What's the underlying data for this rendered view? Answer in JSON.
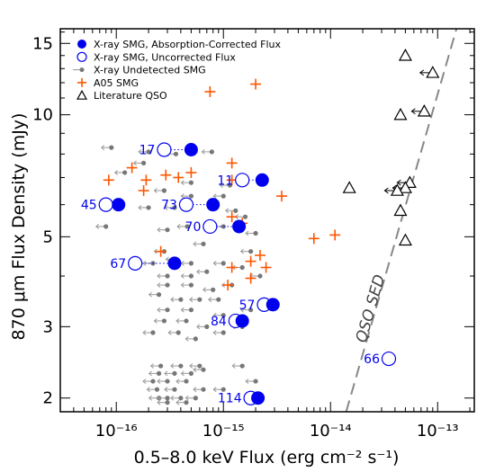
{
  "chart_data": {
    "type": "scatter",
    "xlabel": "0.5–8.0 keV Flux (erg cm⁻² s⁻¹)",
    "ylabel": "870 μm Flux Density (mJy)",
    "xscale": "log",
    "yscale": "log",
    "xlim": [
      3e-17,
      2.2e-13
    ],
    "ylim": [
      1.85,
      16.3
    ],
    "x_ticks": [
      {
        "value": 1e-16,
        "label": "10⁻¹⁶"
      },
      {
        "value": 1e-15,
        "label": "10⁻¹⁵"
      },
      {
        "value": 1e-14,
        "label": "10⁻¹⁴"
      },
      {
        "value": 1e-13,
        "label": "10⁻¹³"
      }
    ],
    "y_ticks": [
      {
        "value": 2,
        "label": "2"
      },
      {
        "value": 3,
        "label": "3"
      },
      {
        "value": 5,
        "label": "5"
      },
      {
        "value": 10,
        "label": "10"
      },
      {
        "value": 15,
        "label": "15"
      }
    ],
    "legend": {
      "position": "top-left",
      "entries": [
        {
          "label": "X-ray SMG, Absorption-Corrected Flux",
          "marker": "filled-circle",
          "color": "#0000ee"
        },
        {
          "label": "X-ray SMG, Uncorrected Flux",
          "marker": "open-circle",
          "color": "#0000ee"
        },
        {
          "label": "X-ray Undetected SMG",
          "marker": "small-dot-arrow",
          "color": "#777777"
        },
        {
          "label": "A05 SMG",
          "marker": "plus",
          "color": "#ff5500"
        },
        {
          "label": "Literature QSO",
          "marker": "open-triangle",
          "color": "#000000"
        }
      ]
    },
    "colors": {
      "xray": "#0000ee",
      "undetected": "#777777",
      "a05": "#ff5500",
      "qso": "#000000",
      "sed_line": "#888888"
    },
    "series": [
      {
        "name": "X-ray SMG, Absorption-Corrected Flux",
        "points": [
          {
            "id": "17",
            "x": 5e-16,
            "y": 8.2
          },
          {
            "id": "11",
            "x": 2.3e-15,
            "y": 6.9
          },
          {
            "id": "45",
            "x": 1.05e-16,
            "y": 6.0
          },
          {
            "id": "73",
            "x": 8e-16,
            "y": 6.0
          },
          {
            "id": "70",
            "x": 1.4e-15,
            "y": 5.3
          },
          {
            "id": "67",
            "x": 3.5e-16,
            "y": 4.3
          },
          {
            "id": "57",
            "x": 2.9e-15,
            "y": 3.4
          },
          {
            "id": "84",
            "x": 1.5e-15,
            "y": 3.1
          },
          {
            "id": "114",
            "x": 2.1e-15,
            "y": 2.0
          }
        ]
      },
      {
        "name": "X-ray SMG, Uncorrected Flux",
        "points": [
          {
            "id": "17",
            "x": 2.8e-16,
            "y": 8.2
          },
          {
            "id": "11",
            "x": 1.5e-15,
            "y": 6.9
          },
          {
            "id": "45",
            "x": 8e-17,
            "y": 6.0
          },
          {
            "id": "73",
            "x": 4.5e-16,
            "y": 6.0
          },
          {
            "id": "70",
            "x": 7.5e-16,
            "y": 5.3
          },
          {
            "id": "67",
            "x": 1.5e-16,
            "y": 4.3
          },
          {
            "id": "57",
            "x": 2.4e-15,
            "y": 3.4
          },
          {
            "id": "84",
            "x": 1.3e-15,
            "y": 3.1
          },
          {
            "id": "114",
            "x": 1.8e-15,
            "y": 2.0
          },
          {
            "id": "66",
            "x": 3.5e-14,
            "y": 2.5
          }
        ]
      },
      {
        "name": "X-ray Undetected SMG",
        "upper_limits": true,
        "points": [
          {
            "x": 9e-17,
            "y": 8.3
          },
          {
            "x": 2e-16,
            "y": 8.1
          },
          {
            "x": 3.6e-16,
            "y": 8.0
          },
          {
            "x": 7.8e-16,
            "y": 8.1
          },
          {
            "x": 1.8e-16,
            "y": 7.6
          },
          {
            "x": 1.2e-16,
            "y": 7.2
          },
          {
            "x": 5e-16,
            "y": 6.8
          },
          {
            "x": 1.15e-15,
            "y": 6.7
          },
          {
            "x": 2.8e-16,
            "y": 6.5
          },
          {
            "x": 2e-16,
            "y": 5.9
          },
          {
            "x": 3.5e-16,
            "y": 5.9
          },
          {
            "x": 5e-16,
            "y": 6.3
          },
          {
            "x": 1e-15,
            "y": 6.3
          },
          {
            "x": 1.3e-15,
            "y": 5.8
          },
          {
            "x": 1.6e-15,
            "y": 5.6
          },
          {
            "x": 8e-17,
            "y": 5.3
          },
          {
            "x": 3e-16,
            "y": 5.2
          },
          {
            "x": 4.6e-16,
            "y": 5.3
          },
          {
            "x": 1e-15,
            "y": 5.3
          },
          {
            "x": 2e-15,
            "y": 5.1
          },
          {
            "x": 6.5e-16,
            "y": 4.8
          },
          {
            "x": 1.8e-15,
            "y": 4.6
          },
          {
            "x": 2.8e-16,
            "y": 4.6
          },
          {
            "x": 3.6e-16,
            "y": 4.4
          },
          {
            "x": 2.2e-16,
            "y": 4.3
          },
          {
            "x": 5e-16,
            "y": 4.3
          },
          {
            "x": 1e-15,
            "y": 4.3
          },
          {
            "x": 1.5e-15,
            "y": 4.2
          },
          {
            "x": 3e-16,
            "y": 4.0
          },
          {
            "x": 5e-16,
            "y": 4.0
          },
          {
            "x": 7e-16,
            "y": 4.1
          },
          {
            "x": 2.2e-15,
            "y": 4.0
          },
          {
            "x": 3e-16,
            "y": 3.8
          },
          {
            "x": 5e-16,
            "y": 3.8
          },
          {
            "x": 8e-16,
            "y": 3.7
          },
          {
            "x": 1.2e-15,
            "y": 3.8
          },
          {
            "x": 2.5e-16,
            "y": 3.6
          },
          {
            "x": 4e-16,
            "y": 3.5
          },
          {
            "x": 6e-16,
            "y": 3.5
          },
          {
            "x": 9e-16,
            "y": 3.5
          },
          {
            "x": 3e-16,
            "y": 3.3
          },
          {
            "x": 5e-16,
            "y": 3.3
          },
          {
            "x": 1.8e-15,
            "y": 3.3
          },
          {
            "x": 1e-15,
            "y": 3.2
          },
          {
            "x": 2.8e-16,
            "y": 3.1
          },
          {
            "x": 4.5e-16,
            "y": 3.1
          },
          {
            "x": 7e-16,
            "y": 3.0
          },
          {
            "x": 1.5e-15,
            "y": 3.0
          },
          {
            "x": 2.2e-16,
            "y": 2.9
          },
          {
            "x": 3.8e-16,
            "y": 2.9
          },
          {
            "x": 5.5e-16,
            "y": 2.8
          },
          {
            "x": 1e-15,
            "y": 2.9
          },
          {
            "x": 2.6e-16,
            "y": 2.4
          },
          {
            "x": 4e-16,
            "y": 2.4
          },
          {
            "x": 6e-16,
            "y": 2.4
          },
          {
            "x": 1.5e-15,
            "y": 2.4
          },
          {
            "x": 2.5e-16,
            "y": 2.3
          },
          {
            "x": 3.5e-16,
            "y": 2.3
          },
          {
            "x": 5e-16,
            "y": 2.3
          },
          {
            "x": 6.5e-16,
            "y": 2.35
          },
          {
            "x": 2.2e-16,
            "y": 2.2
          },
          {
            "x": 3e-16,
            "y": 2.2
          },
          {
            "x": 4.5e-16,
            "y": 2.2
          },
          {
            "x": 2e-15,
            "y": 2.2
          },
          {
            "x": 2.4e-16,
            "y": 2.1
          },
          {
            "x": 3.5e-16,
            "y": 2.1
          },
          {
            "x": 6.5e-16,
            "y": 2.1
          },
          {
            "x": 1e-15,
            "y": 2.1
          },
          {
            "x": 2.5e-16,
            "y": 2.0
          },
          {
            "x": 3e-16,
            "y": 2.0
          },
          {
            "x": 4e-16,
            "y": 2.0
          },
          {
            "x": 5.5e-16,
            "y": 2.0
          },
          {
            "x": 3e-16,
            "y": 1.95
          },
          {
            "x": 4.5e-16,
            "y": 1.95
          }
        ]
      },
      {
        "name": "A05 SMG",
        "points": [
          {
            "x": 7.5e-16,
            "y": 11.4
          },
          {
            "x": 2e-15,
            "y": 11.9
          },
          {
            "x": 1.4e-16,
            "y": 7.4
          },
          {
            "x": 2.9e-16,
            "y": 7.1
          },
          {
            "x": 5e-16,
            "y": 7.2
          },
          {
            "x": 1.2e-15,
            "y": 7.6
          },
          {
            "x": 8.5e-17,
            "y": 6.9
          },
          {
            "x": 1.9e-16,
            "y": 6.9
          },
          {
            "x": 3.8e-16,
            "y": 7.0
          },
          {
            "x": 1.2e-15,
            "y": 6.9
          },
          {
            "x": 1.8e-16,
            "y": 6.5
          },
          {
            "x": 3.5e-15,
            "y": 6.3
          },
          {
            "x": 1.2e-15,
            "y": 5.6
          },
          {
            "x": 1.5e-15,
            "y": 5.4
          },
          {
            "x": 7e-15,
            "y": 4.95
          },
          {
            "x": 1.1e-14,
            "y": 5.05
          },
          {
            "x": 2.6e-16,
            "y": 4.6
          },
          {
            "x": 2.2e-15,
            "y": 4.5
          },
          {
            "x": 1.8e-15,
            "y": 4.35
          },
          {
            "x": 1.2e-15,
            "y": 4.2
          },
          {
            "x": 2.5e-15,
            "y": 4.2
          },
          {
            "x": 1.8e-15,
            "y": 3.95
          },
          {
            "x": 1.1e-15,
            "y": 3.8
          }
        ]
      },
      {
        "name": "Literature QSO",
        "points": [
          {
            "x": 5e-14,
            "y": 14.0
          },
          {
            "x": 9e-14,
            "y": 12.7
          },
          {
            "x": 7.5e-14,
            "y": 10.2
          },
          {
            "x": 4.5e-14,
            "y": 10.0
          },
          {
            "x": 5.5e-14,
            "y": 6.8
          },
          {
            "x": 5e-14,
            "y": 6.6
          },
          {
            "x": 4.2e-14,
            "y": 6.5
          },
          {
            "x": 1.5e-14,
            "y": 6.6
          },
          {
            "x": 4.5e-14,
            "y": 5.8
          },
          {
            "x": 5e-14,
            "y": 4.9
          }
        ]
      }
    ],
    "annotations": [
      {
        "text": "QSO SED",
        "kind": "dashed-line",
        "line": [
          {
            "x": 1.4e-14,
            "y": 1.85
          },
          {
            "x": 1.5e-13,
            "y": 16.3
          }
        ]
      }
    ]
  }
}
